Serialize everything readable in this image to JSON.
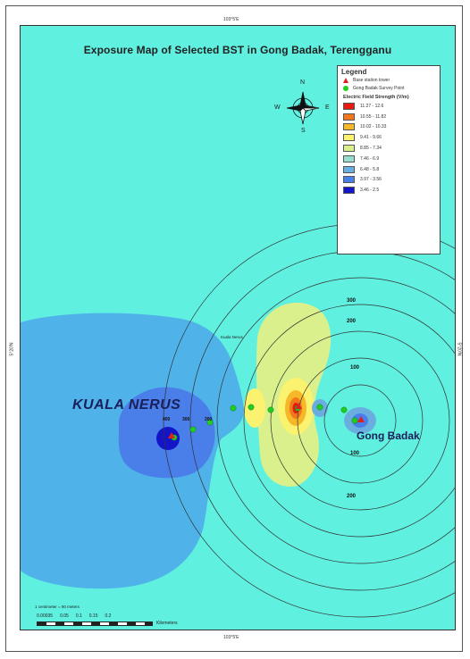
{
  "map": {
    "title": "Exposure Map of Selected BST in Gong Badak, Terengganu",
    "coords": {
      "top": "103°5'E",
      "bottom": "103°5'E",
      "left": "5°20'N",
      "right": "5°20'N"
    },
    "compass": {
      "n": "N",
      "s": "S",
      "e": "E",
      "w": "W"
    },
    "places": {
      "kuala_nerus": "KUALA NERUS",
      "gong_badak": "Gong Badak",
      "kuala_nerus_small": "Kuala Nerus"
    },
    "ring_labels": [
      "300",
      "200",
      "100",
      "100",
      "200",
      "400",
      "300",
      "200"
    ],
    "scale": {
      "note": "1 centimeter = 90 meters",
      "ticks": [
        "0.00035",
        "0.05",
        "0.1",
        "0.15",
        "0.2"
      ],
      "unit": "Kilometers"
    }
  },
  "legend": {
    "title": "Legend",
    "symbols": [
      {
        "label": "Base station tower",
        "icon": "red-triangle",
        "color": "#e02020"
      },
      {
        "label": "Gong Badak Survey Point",
        "icon": "green-dot",
        "color": "#22cc22"
      }
    ],
    "field_title": "Electric Field Strength (V/m)",
    "classes": [
      {
        "label": "11.27 - 12.6",
        "color": "#e81a10"
      },
      {
        "label": "10.55 - 11.82",
        "color": "#f2761c"
      },
      {
        "label": "10.02 - 10.33",
        "color": "#f6b828"
      },
      {
        "label": "9.41 - 9.66",
        "color": "#fbf370"
      },
      {
        "label": "8.85 - 7.34",
        "color": "#d9f08c"
      },
      {
        "label": "7.46 - 6.9",
        "color": "#97ddd0"
      },
      {
        "label": "6.48 - 5.8",
        "color": "#6aaee0"
      },
      {
        "label": "3.97 - 3.56",
        "color": "#4a7ee8"
      },
      {
        "label": "3.46 - 2.5",
        "color": "#1414c8"
      }
    ]
  }
}
